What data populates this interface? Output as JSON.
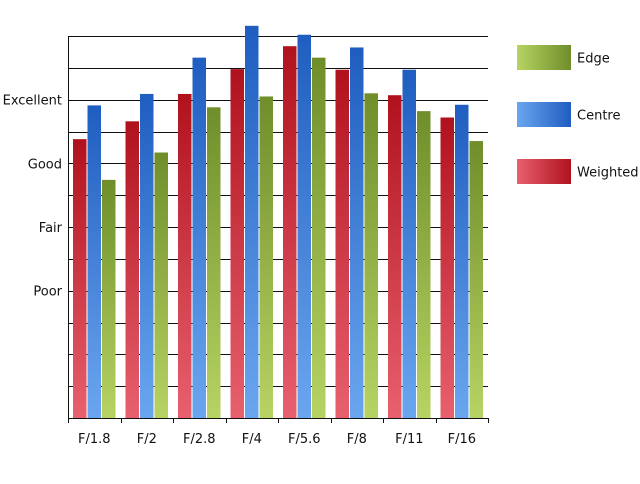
{
  "chart_data": {
    "type": "bar",
    "categories": [
      "F/1.8",
      "F/2",
      "F/2.8",
      "F/4",
      "F/5.6",
      "F/8",
      "F/11",
      "F/16"
    ],
    "series": [
      {
        "name": "Weighted",
        "values": [
          3.38,
          3.66,
          4.09,
          4.48,
          4.84,
          4.47,
          4.07,
          3.72
        ]
      },
      {
        "name": "Centre",
        "values": [
          3.91,
          4.09,
          4.66,
          5.16,
          5.02,
          4.82,
          4.47,
          3.92
        ]
      },
      {
        "name": "Edge",
        "values": [
          2.74,
          3.17,
          3.88,
          4.05,
          4.66,
          4.1,
          3.82,
          3.35
        ]
      }
    ],
    "y_tick_labels": [
      {
        "label": "Poor",
        "value": 1
      },
      {
        "label": "Fair",
        "value": 2
      },
      {
        "label": "Good",
        "value": 3
      },
      {
        "label": "Excellent",
        "value": 4
      }
    ],
    "ylim": [
      -1,
      5
    ],
    "grid": true,
    "legend_placement": "top-right",
    "legend_order": [
      "Edge",
      "Centre",
      "Weighted"
    ],
    "colors": {
      "Weighted": {
        "top": "#b0121d",
        "bottom": "#e8606e"
      },
      "Centre": {
        "top": "#1f5dc0",
        "bottom": "#6aa6ef"
      },
      "Edge": {
        "top": "#6f8e2a",
        "bottom": "#b7d363"
      }
    }
  }
}
